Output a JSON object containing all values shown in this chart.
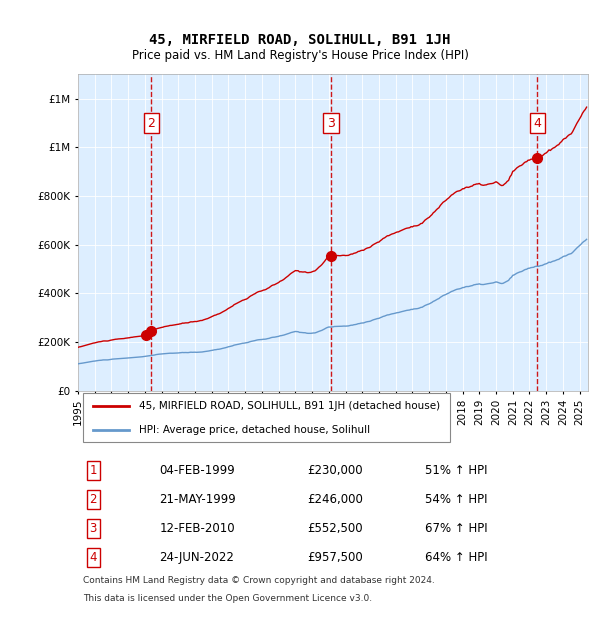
{
  "title": "45, MIRFIELD ROAD, SOLIHULL, B91 1JH",
  "subtitle": "Price paid vs. HM Land Registry's House Price Index (HPI)",
  "legend_line1": "45, MIRFIELD ROAD, SOLIHULL, B91 1JH (detached house)",
  "legend_line2": "HPI: Average price, detached house, Solihull",
  "footer1": "Contains HM Land Registry data © Crown copyright and database right 2024.",
  "footer2": "This data is licensed under the Open Government Licence v3.0.",
  "sales": [
    {
      "num": 1,
      "date_str": "04-FEB-1999",
      "date_x": 1999.09,
      "price": 230000,
      "pct": "51%",
      "label": "1"
    },
    {
      "num": 2,
      "date_str": "21-MAY-1999",
      "date_x": 1999.38,
      "price": 246000,
      "pct": "54%",
      "label": "2"
    },
    {
      "num": 3,
      "date_str": "12-FEB-2010",
      "date_x": 2010.12,
      "price": 552500,
      "pct": "67%",
      "label": "3"
    },
    {
      "num": 4,
      "date_str": "24-JUN-2022",
      "date_x": 2022.47,
      "price": 957500,
      "pct": "64%",
      "label": "4"
    }
  ],
  "hpi_color": "#6699cc",
  "price_color": "#cc0000",
  "dot_color": "#cc0000",
  "vline_color_red": "#cc0000",
  "vline_color_brown": "#996666",
  "bg_color": "#ddeeff",
  "plot_bg": "#ddeeff",
  "ylim": [
    0,
    1300000
  ],
  "xlim_start": 1995.0,
  "xlim_end": 2025.5,
  "yticks": [
    0,
    200000,
    400000,
    600000,
    800000,
    1000000,
    1200000
  ]
}
